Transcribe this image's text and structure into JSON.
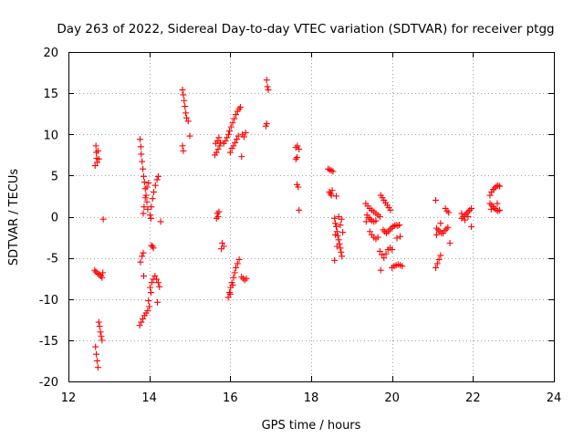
{
  "chart_data": {
    "type": "scatter",
    "title": "Day 263 of 2022, Sidereal Day-to-day VTEC variation (SDTVAR) for receiver ptgg",
    "xlabel": "GPS time / hours",
    "ylabel": "SDTVAR / TECUs",
    "xlim": [
      12,
      24
    ],
    "ylim": [
      -20,
      20
    ],
    "x_ticks": [
      12,
      14,
      16,
      18,
      20,
      22,
      24
    ],
    "y_ticks": [
      -20,
      -15,
      -10,
      -5,
      0,
      5,
      10,
      15,
      20
    ],
    "x_tick_labels": [
      "12",
      "14",
      "16",
      "18",
      "20",
      "22",
      "24"
    ],
    "y_tick_labels": [
      "-20",
      "-15",
      "-10",
      "-5",
      "0",
      "5",
      "10",
      "15",
      "20"
    ],
    "grid": true,
    "marker": "+",
    "marker_color": "#ff0000",
    "series": [
      {
        "name": "SDTVAR",
        "points": [
          [
            12.68,
            8.6
          ],
          [
            12.69,
            7.8
          ],
          [
            12.7,
            7.1
          ],
          [
            12.71,
            6.6
          ],
          [
            12.73,
            8.0
          ],
          [
            12.75,
            7.0
          ],
          [
            12.66,
            6.2
          ],
          [
            12.65,
            -6.5
          ],
          [
            12.68,
            -6.7
          ],
          [
            12.72,
            -6.9
          ],
          [
            12.76,
            -7.0
          ],
          [
            12.8,
            -7.2
          ],
          [
            12.83,
            -7.4
          ],
          [
            12.85,
            -6.8
          ],
          [
            12.67,
            -15.8
          ],
          [
            12.69,
            -16.7
          ],
          [
            12.71,
            -17.5
          ],
          [
            12.73,
            -18.3
          ],
          [
            12.75,
            -12.8
          ],
          [
            12.77,
            -13.3
          ],
          [
            12.79,
            -14.0
          ],
          [
            12.81,
            -14.5
          ],
          [
            12.83,
            -15.0
          ],
          [
            12.86,
            -0.3
          ],
          [
            13.76,
            -13.2
          ],
          [
            13.8,
            -12.8
          ],
          [
            13.84,
            -12.4
          ],
          [
            13.88,
            -12.0
          ],
          [
            13.92,
            -11.7
          ],
          [
            13.96,
            -11.4
          ],
          [
            14.0,
            -10.9
          ],
          [
            13.98,
            -10.2
          ],
          [
            13.78,
            -5.5
          ],
          [
            13.82,
            -4.8
          ],
          [
            13.85,
            -4.4
          ],
          [
            13.86,
            -7.2
          ],
          [
            13.77,
            9.4
          ],
          [
            13.79,
            8.5
          ],
          [
            13.8,
            7.6
          ],
          [
            13.82,
            6.7
          ],
          [
            13.84,
            5.8
          ],
          [
            13.86,
            4.9
          ],
          [
            13.88,
            4.2
          ],
          [
            13.9,
            3.4
          ],
          [
            13.92,
            2.6
          ],
          [
            13.94,
            1.8
          ],
          [
            13.96,
            0.9
          ],
          [
            13.85,
            0.4
          ],
          [
            13.87,
            1.2
          ],
          [
            13.9,
            2.3
          ],
          [
            13.94,
            3.6
          ],
          [
            13.98,
            4.1
          ],
          [
            14.02,
            0.2
          ],
          [
            14.05,
            1.2
          ],
          [
            14.08,
            2.2
          ],
          [
            14.11,
            3.0
          ],
          [
            14.15,
            3.8
          ],
          [
            14.19,
            4.5
          ],
          [
            14.22,
            4.9
          ],
          [
            14.04,
            -0.2
          ],
          [
            14.28,
            -0.6
          ],
          [
            14.05,
            -3.5
          ],
          [
            14.1,
            -3.8
          ],
          [
            14.08,
            -3.6
          ],
          [
            14.02,
            -8.6
          ],
          [
            14.06,
            -8.0
          ],
          [
            14.1,
            -7.6
          ],
          [
            14.14,
            -7.2
          ],
          [
            14.18,
            -7.6
          ],
          [
            14.22,
            -8.0
          ],
          [
            14.25,
            -8.5
          ],
          [
            14.04,
            -9.2
          ],
          [
            14.2,
            -10.4
          ],
          [
            14.82,
            15.4
          ],
          [
            14.84,
            14.8
          ],
          [
            14.86,
            14.1
          ],
          [
            14.88,
            13.4
          ],
          [
            14.9,
            12.6
          ],
          [
            14.92,
            12.0
          ],
          [
            14.96,
            11.6
          ],
          [
            14.82,
            8.6
          ],
          [
            14.84,
            8.0
          ],
          [
            15.0,
            9.8
          ],
          [
            15.62,
            7.5
          ],
          [
            15.66,
            7.8
          ],
          [
            15.7,
            8.2
          ],
          [
            15.74,
            8.6
          ],
          [
            15.64,
            8.9
          ],
          [
            15.68,
            9.2
          ],
          [
            15.72,
            9.6
          ],
          [
            15.76,
            9.0
          ],
          [
            15.84,
            8.9
          ],
          [
            15.88,
            9.2
          ],
          [
            15.92,
            9.6
          ],
          [
            15.96,
            10.0
          ],
          [
            15.98,
            10.4
          ],
          [
            16.02,
            10.9
          ],
          [
            16.06,
            11.4
          ],
          [
            16.1,
            11.9
          ],
          [
            16.14,
            12.4
          ],
          [
            16.18,
            12.8
          ],
          [
            16.22,
            13.1
          ],
          [
            16.25,
            13.3
          ],
          [
            16.0,
            7.8
          ],
          [
            16.04,
            8.3
          ],
          [
            16.08,
            8.6
          ],
          [
            16.12,
            9.0
          ],
          [
            16.16,
            9.4
          ],
          [
            16.2,
            9.8
          ],
          [
            16.3,
            10.0
          ],
          [
            16.38,
            10.2
          ],
          [
            16.34,
            9.7
          ],
          [
            16.28,
            7.3
          ],
          [
            15.68,
            0.4
          ],
          [
            15.7,
            0.0
          ],
          [
            15.72,
            0.6
          ],
          [
            15.66,
            -0.2
          ],
          [
            15.8,
            -3.2
          ],
          [
            15.84,
            -3.6
          ],
          [
            15.78,
            -3.9
          ],
          [
            15.95,
            -9.8
          ],
          [
            15.98,
            -9.2
          ],
          [
            16.01,
            -8.6
          ],
          [
            16.04,
            -8.0
          ],
          [
            16.08,
            -7.4
          ],
          [
            16.11,
            -6.8
          ],
          [
            16.14,
            -6.2
          ],
          [
            16.18,
            -5.7
          ],
          [
            16.22,
            -5.2
          ],
          [
            16.0,
            -9.4
          ],
          [
            16.06,
            -8.3
          ],
          [
            16.28,
            -7.3
          ],
          [
            16.32,
            -7.5
          ],
          [
            16.36,
            -7.7
          ],
          [
            16.4,
            -7.5
          ],
          [
            16.9,
            16.6
          ],
          [
            16.92,
            15.8
          ],
          [
            16.94,
            15.4
          ],
          [
            16.88,
            11.0
          ],
          [
            16.9,
            11.3
          ],
          [
            17.62,
            8.4
          ],
          [
            17.66,
            8.6
          ],
          [
            17.7,
            8.2
          ],
          [
            17.62,
            7.0
          ],
          [
            17.65,
            7.2
          ],
          [
            17.65,
            3.9
          ],
          [
            17.68,
            3.6
          ],
          [
            17.7,
            0.8
          ],
          [
            18.42,
            5.8
          ],
          [
            18.46,
            5.7
          ],
          [
            18.5,
            5.6
          ],
          [
            18.54,
            5.5
          ],
          [
            18.45,
            3.0
          ],
          [
            18.48,
            2.8
          ],
          [
            18.5,
            2.6
          ],
          [
            18.62,
            2.5
          ],
          [
            18.52,
            3.2
          ],
          [
            18.58,
            -0.2
          ],
          [
            18.6,
            -0.8
          ],
          [
            18.62,
            -1.2
          ],
          [
            18.64,
            -1.8
          ],
          [
            18.66,
            -2.3
          ],
          [
            18.68,
            -2.8
          ],
          [
            18.7,
            -3.3
          ],
          [
            18.72,
            -3.8
          ],
          [
            18.74,
            -4.3
          ],
          [
            18.76,
            -4.8
          ],
          [
            18.58,
            -5.3
          ],
          [
            18.6,
            -2.2
          ],
          [
            18.64,
            -3.6
          ],
          [
            18.68,
            0.0
          ],
          [
            18.72,
            -1.0
          ],
          [
            18.75,
            -0.3
          ],
          [
            18.78,
            -1.9
          ],
          [
            19.35,
            1.6
          ],
          [
            19.4,
            1.3
          ],
          [
            19.45,
            1.0
          ],
          [
            19.5,
            0.8
          ],
          [
            19.55,
            0.6
          ],
          [
            19.6,
            0.4
          ],
          [
            19.65,
            0.2
          ],
          [
            19.7,
            0.0
          ],
          [
            19.38,
            0.2
          ],
          [
            19.42,
            -0.1
          ],
          [
            19.46,
            -0.3
          ],
          [
            19.5,
            -0.5
          ],
          [
            19.55,
            -0.6
          ],
          [
            19.6,
            -0.5
          ],
          [
            19.36,
            -0.6
          ],
          [
            19.45,
            -1.8
          ],
          [
            19.5,
            -2.2
          ],
          [
            19.55,
            -2.5
          ],
          [
            19.6,
            -2.7
          ],
          [
            19.65,
            -2.5
          ],
          [
            19.7,
            -4.2
          ],
          [
            19.75,
            -4.6
          ],
          [
            19.8,
            -5.0
          ],
          [
            19.85,
            -4.5
          ],
          [
            19.9,
            -4.0
          ],
          [
            19.95,
            -3.8
          ],
          [
            20.0,
            -4.0
          ],
          [
            19.72,
            -6.5
          ],
          [
            19.72,
            2.6
          ],
          [
            19.76,
            2.3
          ],
          [
            19.8,
            2.0
          ],
          [
            19.84,
            1.7
          ],
          [
            19.88,
            1.4
          ],
          [
            19.92,
            1.1
          ],
          [
            19.96,
            0.8
          ],
          [
            19.78,
            -1.6
          ],
          [
            19.82,
            -1.8
          ],
          [
            19.86,
            -2.0
          ],
          [
            19.9,
            -1.8
          ],
          [
            19.94,
            -1.6
          ],
          [
            19.98,
            -1.4
          ],
          [
            20.02,
            -1.2
          ],
          [
            20.06,
            -1.1
          ],
          [
            20.1,
            -1.0
          ],
          [
            20.14,
            -1.1
          ],
          [
            20.18,
            -1.0
          ],
          [
            20.12,
            -2.6
          ],
          [
            20.2,
            -2.4
          ],
          [
            20.0,
            -6.2
          ],
          [
            20.05,
            -6.0
          ],
          [
            20.1,
            -5.9
          ],
          [
            20.15,
            -5.8
          ],
          [
            20.2,
            -5.9
          ],
          [
            20.25,
            -6.0
          ],
          [
            21.08,
            2.0
          ],
          [
            21.1,
            -1.4
          ],
          [
            21.14,
            -1.6
          ],
          [
            21.18,
            -1.8
          ],
          [
            21.22,
            -2.0
          ],
          [
            21.26,
            -2.0
          ],
          [
            21.3,
            -1.7
          ],
          [
            21.34,
            -1.5
          ],
          [
            21.38,
            -1.3
          ],
          [
            21.1,
            -2.2
          ],
          [
            21.2,
            -0.8
          ],
          [
            21.32,
            1.0
          ],
          [
            21.36,
            0.7
          ],
          [
            21.4,
            0.5
          ],
          [
            21.43,
            -3.2
          ],
          [
            21.08,
            -6.2
          ],
          [
            21.12,
            -5.7
          ],
          [
            21.16,
            -5.2
          ],
          [
            21.2,
            -4.7
          ],
          [
            21.72,
            -0.2
          ],
          [
            21.76,
            0.0
          ],
          [
            21.8,
            0.2
          ],
          [
            21.84,
            0.4
          ],
          [
            21.88,
            0.6
          ],
          [
            21.92,
            0.8
          ],
          [
            21.96,
            1.0
          ],
          [
            21.72,
            0.4
          ],
          [
            21.8,
            -0.4
          ],
          [
            21.88,
            0.0
          ],
          [
            21.96,
            -1.2
          ],
          [
            22.42,
            2.6
          ],
          [
            22.46,
            3.0
          ],
          [
            22.5,
            3.3
          ],
          [
            22.54,
            3.5
          ],
          [
            22.58,
            3.7
          ],
          [
            22.62,
            3.8
          ],
          [
            22.66,
            3.7
          ],
          [
            22.42,
            1.6
          ],
          [
            22.46,
            1.4
          ],
          [
            22.5,
            1.2
          ],
          [
            22.54,
            1.0
          ],
          [
            22.58,
            0.8
          ],
          [
            22.62,
            0.7
          ],
          [
            22.66,
            0.8
          ],
          [
            22.45,
            0.9
          ],
          [
            22.6,
            1.6
          ]
        ]
      }
    ]
  }
}
